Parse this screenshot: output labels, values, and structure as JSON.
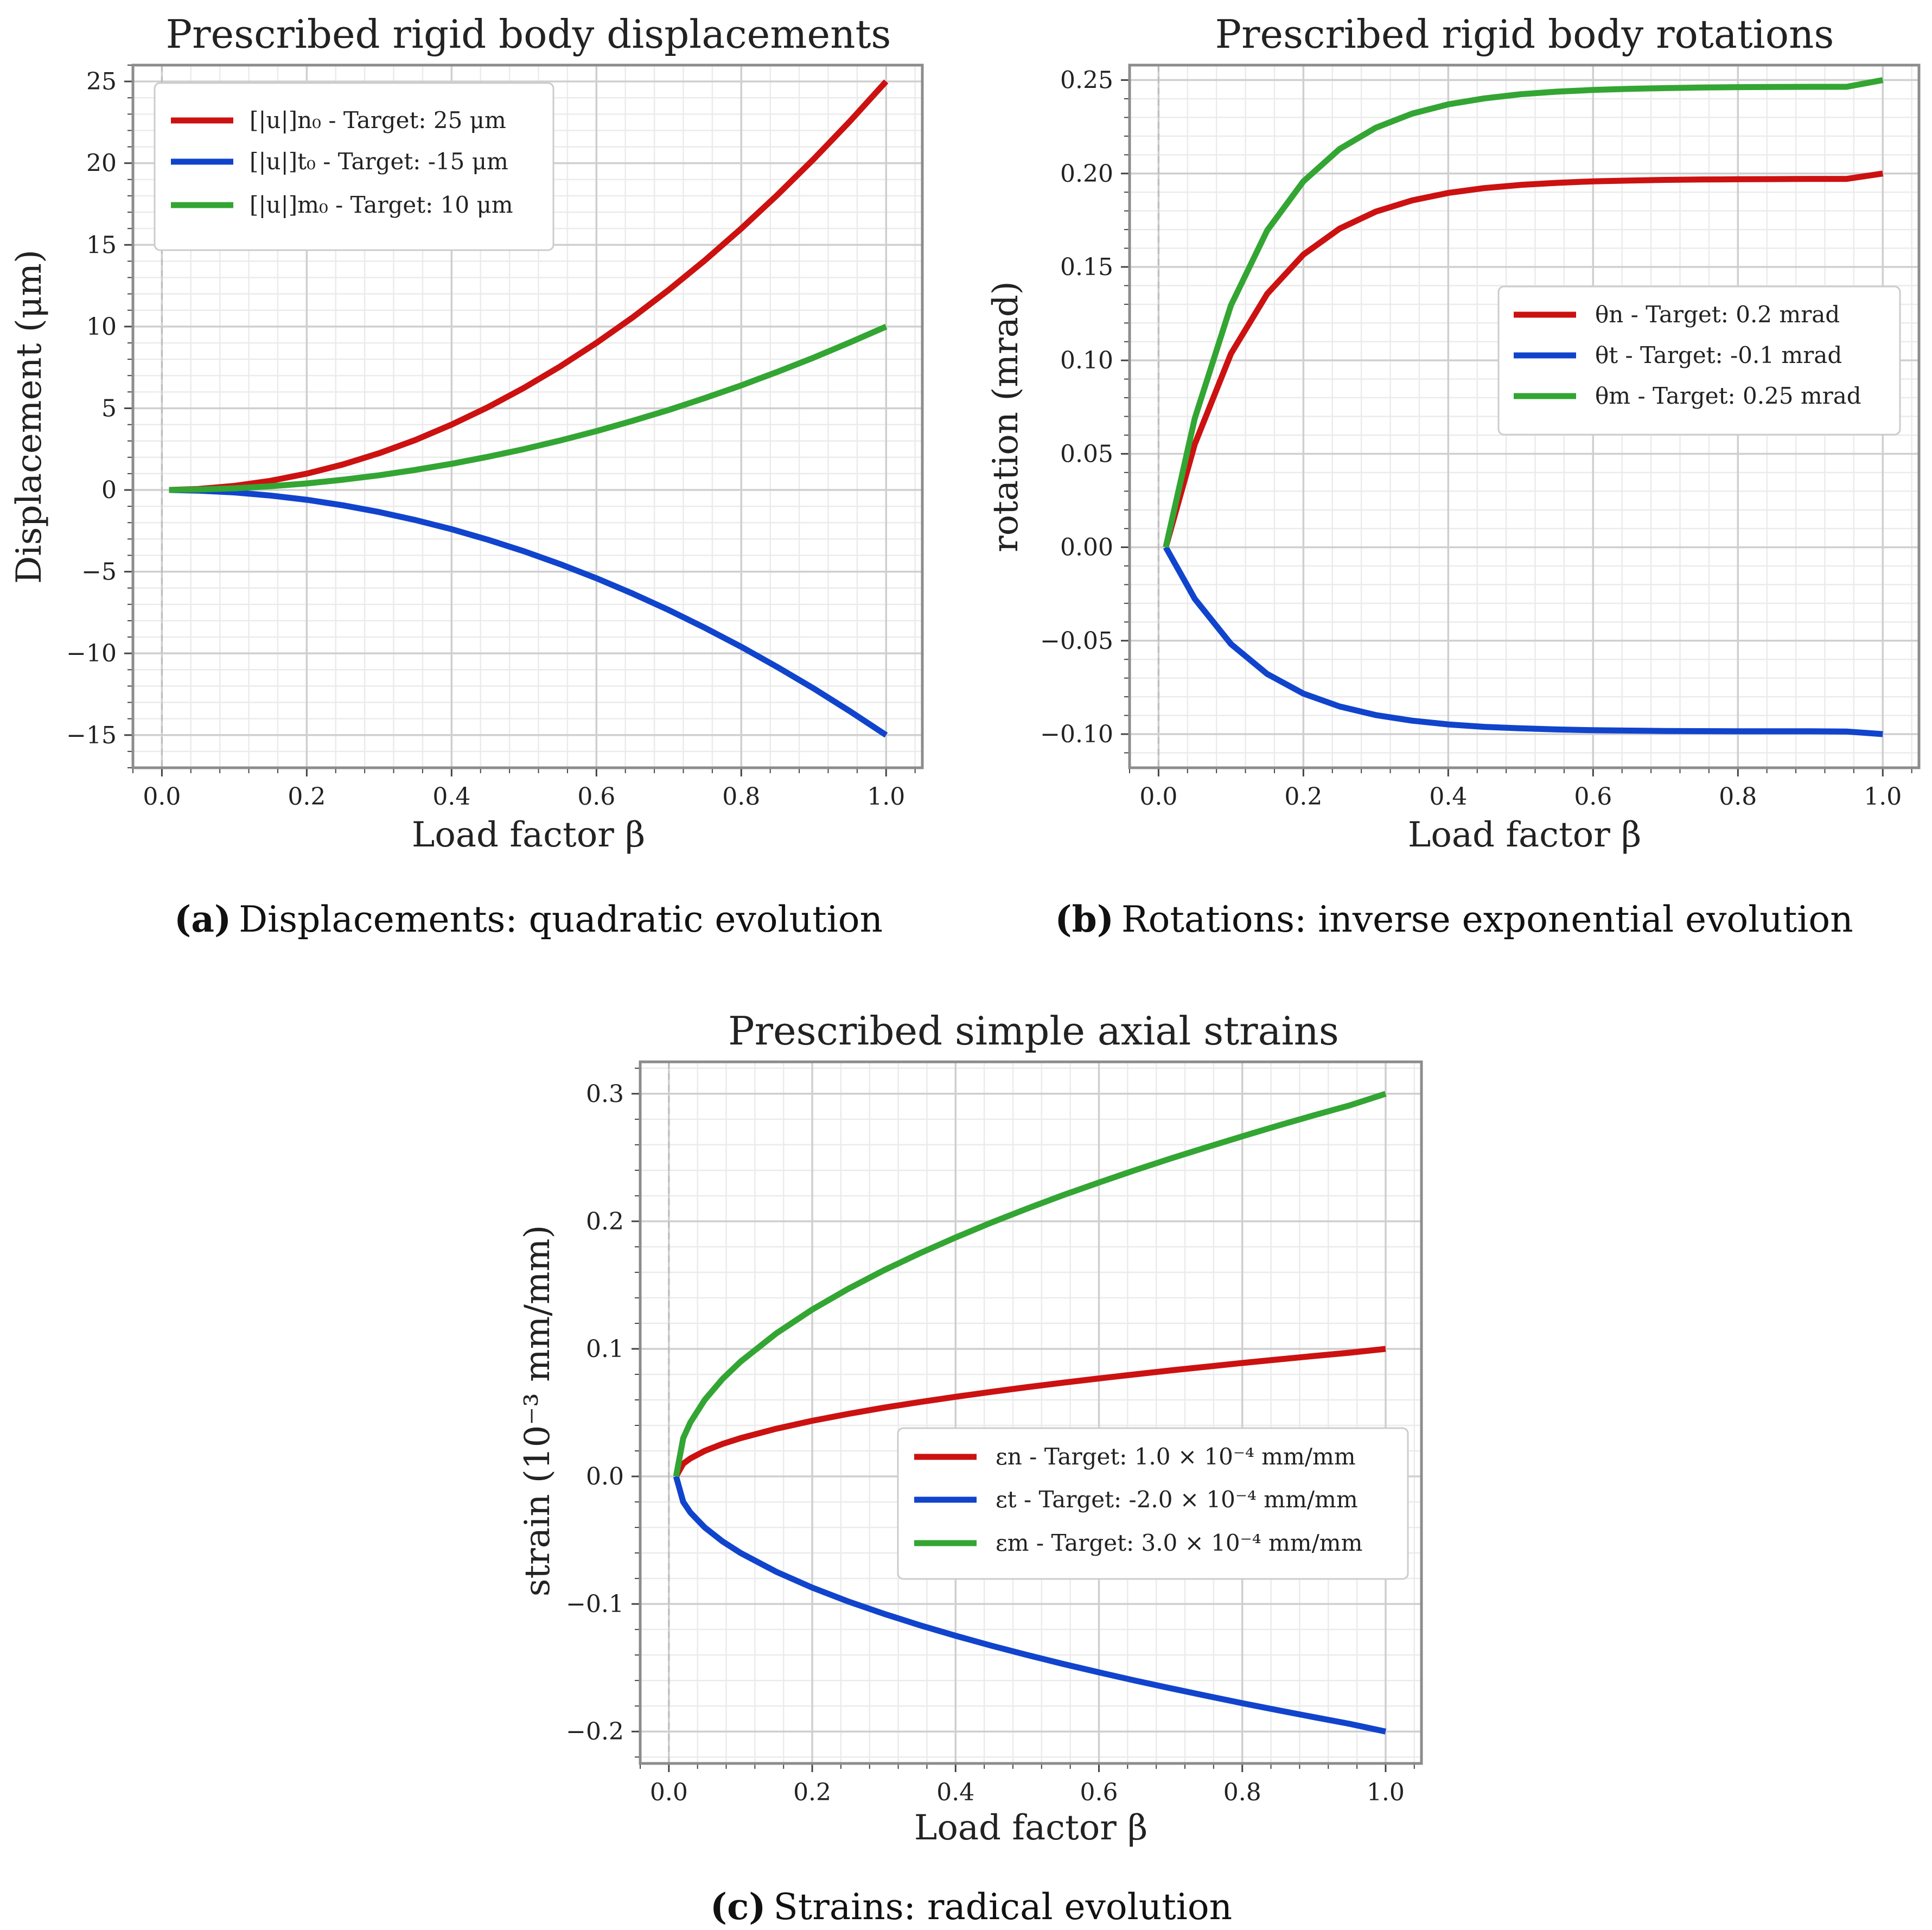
{
  "chart_data": [
    {
      "type": "line",
      "id": "a",
      "title": "Prescribed rigid body displacements",
      "xlabel": "Load factor β",
      "ylabel": "Displacement (μm)",
      "xlim": [
        -0.04,
        1.05
      ],
      "ylim": [
        -17,
        26
      ],
      "xticks": [
        0.0,
        0.2,
        0.4,
        0.6,
        0.8,
        1.0
      ],
      "xtick_labels": [
        "0.0",
        "0.2",
        "0.4",
        "0.6",
        "0.8",
        "1.0"
      ],
      "yticks": [
        -15,
        -10,
        -5,
        0,
        5,
        10,
        15,
        20,
        25
      ],
      "ytick_labels": [
        "−15",
        "−10",
        "−5",
        "0",
        "5",
        "10",
        "15",
        "20",
        "25"
      ],
      "grid": true,
      "legend_position": "top-left",
      "evolution": "quadratic",
      "x": [
        0.01,
        0.05,
        0.1,
        0.15,
        0.2,
        0.25,
        0.3,
        0.35,
        0.4,
        0.45,
        0.5,
        0.55,
        0.6,
        0.65,
        0.7,
        0.75,
        0.8,
        0.85,
        0.9,
        0.95,
        1.0
      ],
      "series": [
        {
          "name": "[|u|]n0",
          "legend": "[|u|]n₀ - Target: 25 μm",
          "color": "#cc1111",
          "values": [
            0.0,
            0.06,
            0.25,
            0.56,
            1.0,
            1.56,
            2.25,
            3.06,
            4.0,
            5.06,
            6.25,
            7.56,
            9.0,
            10.56,
            12.25,
            14.06,
            16.0,
            18.06,
            20.25,
            22.56,
            25.0
          ]
        },
        {
          "name": "[|u|]t0",
          "legend": "[|u|]t₀ - Target: -15 μm",
          "color": "#1144cc",
          "values": [
            0.0,
            -0.04,
            -0.15,
            -0.34,
            -0.6,
            -0.94,
            -1.35,
            -1.84,
            -2.4,
            -3.04,
            -3.75,
            -4.54,
            -5.4,
            -6.34,
            -7.35,
            -8.44,
            -9.6,
            -10.84,
            -12.15,
            -13.54,
            -15.0
          ]
        },
        {
          "name": "[|u|]m0",
          "legend": "[|u|]m₀ - Target: 10 μm",
          "color": "#33a533",
          "values": [
            0.0,
            0.03,
            0.1,
            0.23,
            0.4,
            0.63,
            0.9,
            1.23,
            1.6,
            2.03,
            2.5,
            3.03,
            3.6,
            4.23,
            4.9,
            5.63,
            6.4,
            7.23,
            8.1,
            9.03,
            10.0
          ]
        }
      ],
      "caption_label": "(a)",
      "caption_text": "Displacements: quadratic evolution"
    },
    {
      "type": "line",
      "id": "b",
      "title": "Prescribed rigid body rotations",
      "xlabel": "Load factor β",
      "ylabel": "rotation (mrad)",
      "xlim": [
        -0.04,
        1.05
      ],
      "ylim": [
        -0.118,
        0.258
      ],
      "xticks": [
        0.0,
        0.2,
        0.4,
        0.6,
        0.8,
        1.0
      ],
      "xtick_labels": [
        "0.0",
        "0.2",
        "0.4",
        "0.6",
        "0.8",
        "1.0"
      ],
      "yticks": [
        -0.1,
        -0.05,
        0.0,
        0.05,
        0.1,
        0.15,
        0.2,
        0.25
      ],
      "ytick_labels": [
        "−0.10",
        "−0.05",
        "0.00",
        "0.05",
        "0.10",
        "0.15",
        "0.20",
        "0.25"
      ],
      "grid": true,
      "legend_position": "center-right",
      "evolution": "inverse exponential",
      "x": [
        0.01,
        0.05,
        0.1,
        0.15,
        0.2,
        0.25,
        0.3,
        0.35,
        0.4,
        0.45,
        0.5,
        0.55,
        0.6,
        0.65,
        0.7,
        0.75,
        0.8,
        0.85,
        0.9,
        0.95,
        1.0
      ],
      "series": [
        {
          "name": "θn",
          "legend": "θn - Target: 0.2 mrad",
          "color": "#cc1111",
          "values": [
            0.0,
            0.0551,
            0.1036,
            0.1356,
            0.1566,
            0.1705,
            0.1796,
            0.1856,
            0.1896,
            0.1922,
            0.1939,
            0.195,
            0.1958,
            0.1962,
            0.1966,
            0.1968,
            0.1969,
            0.197,
            0.1971,
            0.1971,
            0.2
          ]
        },
        {
          "name": "θt",
          "legend": "θt - Target: -0.1 mrad",
          "color": "#1144cc",
          "values": [
            0.0,
            -0.0276,
            -0.0518,
            -0.0678,
            -0.0783,
            -0.0852,
            -0.0898,
            -0.0928,
            -0.0948,
            -0.0961,
            -0.0969,
            -0.0975,
            -0.0979,
            -0.0981,
            -0.0983,
            -0.0984,
            -0.0985,
            -0.0985,
            -0.0985,
            -0.0986,
            -0.1
          ]
        },
        {
          "name": "θm",
          "legend": "θm - Target: 0.25 mrad",
          "color": "#33a533",
          "values": [
            0.0,
            0.0689,
            0.1295,
            0.1695,
            0.1958,
            0.2131,
            0.2245,
            0.232,
            0.237,
            0.2402,
            0.2424,
            0.2438,
            0.2447,
            0.2453,
            0.2457,
            0.246,
            0.2462,
            0.2463,
            0.2464,
            0.2464,
            0.25
          ]
        }
      ],
      "caption_label": "(b)",
      "caption_text": "Rotations: inverse exponential evolution"
    },
    {
      "type": "line",
      "id": "c",
      "title": "Prescribed simple axial strains",
      "xlabel": "Load factor β",
      "ylabel": "strain (10⁻³ mm/mm)",
      "xlim": [
        -0.04,
        1.05
      ],
      "ylim": [
        -0.225,
        0.325
      ],
      "xticks": [
        0.0,
        0.2,
        0.4,
        0.6,
        0.8,
        1.0
      ],
      "xtick_labels": [
        "0.0",
        "0.2",
        "0.4",
        "0.6",
        "0.8",
        "1.0"
      ],
      "yticks": [
        -0.2,
        -0.1,
        0.0,
        0.1,
        0.2,
        0.3
      ],
      "ytick_labels": [
        "−0.2",
        "−0.1",
        "0.0",
        "0.1",
        "0.2",
        "0.3"
      ],
      "grid": true,
      "legend_position": "center-right",
      "evolution": "radical",
      "x": [
        0.01,
        0.02,
        0.03,
        0.05,
        0.075,
        0.1,
        0.15,
        0.2,
        0.25,
        0.3,
        0.35,
        0.4,
        0.45,
        0.5,
        0.55,
        0.6,
        0.65,
        0.7,
        0.75,
        0.8,
        0.85,
        0.9,
        0.95,
        1.0
      ],
      "series": [
        {
          "name": "εn",
          "legend": "εn - Target: 1.0 × 10⁻⁴ mm/mm",
          "color": "#cc1111",
          "values": [
            0.0,
            0.01,
            0.0141,
            0.02,
            0.0255,
            0.03,
            0.0374,
            0.0436,
            0.049,
            0.0539,
            0.0583,
            0.0624,
            0.0663,
            0.07,
            0.0735,
            0.0768,
            0.08,
            0.0831,
            0.086,
            0.0889,
            0.0917,
            0.0944,
            0.097,
            0.1
          ]
        },
        {
          "name": "εt",
          "legend": "εt - Target: -2.0 × 10⁻⁴ mm/mm",
          "color": "#1144cc",
          "values": [
            0.0,
            -0.02,
            -0.0283,
            -0.04,
            -0.051,
            -0.06,
            -0.0748,
            -0.0872,
            -0.098,
            -0.1077,
            -0.1166,
            -0.1249,
            -0.1327,
            -0.14,
            -0.147,
            -0.1536,
            -0.16,
            -0.1661,
            -0.172,
            -0.1778,
            -0.1833,
            -0.1887,
            -0.194,
            -0.2
          ]
        },
        {
          "name": "εm",
          "legend": "εm - Target: 3.0 × 10⁻⁴ mm/mm",
          "color": "#33a533",
          "values": [
            0.0,
            0.03,
            0.0424,
            0.06,
            0.0765,
            0.09,
            0.1122,
            0.1308,
            0.147,
            0.1616,
            0.1749,
            0.1873,
            0.199,
            0.21,
            0.2205,
            0.2304,
            0.24,
            0.2492,
            0.258,
            0.2666,
            0.275,
            0.2831,
            0.2909,
            0.3
          ]
        }
      ],
      "caption_label": "(c)",
      "caption_text": "Strains: radical evolution"
    }
  ]
}
